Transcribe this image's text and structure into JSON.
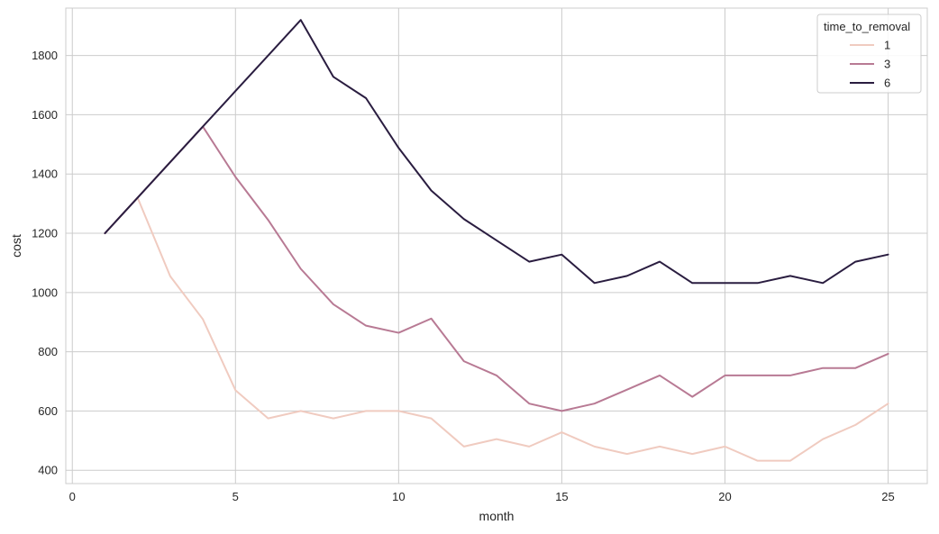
{
  "chart_data": {
    "type": "line",
    "title": "",
    "xlabel": "month",
    "ylabel": "cost",
    "xlim": [
      -0.2,
      26.2
    ],
    "ylim": [
      355,
      1960
    ],
    "xticks": [
      0,
      5,
      10,
      15,
      20,
      25
    ],
    "yticks": [
      400,
      600,
      800,
      1000,
      1200,
      1400,
      1600,
      1800
    ],
    "grid": true,
    "legend": {
      "title": "time_to_removal",
      "placement": "top-right"
    },
    "x": [
      1,
      2,
      3,
      4,
      5,
      6,
      7,
      8,
      9,
      10,
      11,
      12,
      13,
      14,
      15,
      16,
      17,
      18,
      19,
      20,
      21,
      22,
      23,
      24,
      25
    ],
    "series": [
      {
        "name": "1",
        "color": "#f0cbc0",
        "values": [
          1200,
          1320,
          1055,
          910,
          670,
          575,
          600,
          575,
          600,
          600,
          575,
          480,
          505,
          480,
          528,
          480,
          455,
          480,
          455,
          480,
          432,
          432,
          505,
          553,
          625
        ]
      },
      {
        "name": "3",
        "color": "#b87a94",
        "values": [
          1200,
          1320,
          1440,
          1560,
          1390,
          1245,
          1080,
          960,
          888,
          864,
          912,
          768,
          720,
          625,
          600,
          625,
          672,
          720,
          648,
          720,
          720,
          720,
          745,
          745,
          793
        ]
      },
      {
        "name": "6",
        "color": "#2a1d40",
        "values": [
          1200,
          1320,
          1440,
          1560,
          1680,
          1800,
          1920,
          1728,
          1656,
          1488,
          1344,
          1248,
          1176,
          1104,
          1128,
          1032,
          1056,
          1104,
          1032,
          1032,
          1032,
          1056,
          1032,
          1104,
          1128
        ]
      }
    ]
  }
}
